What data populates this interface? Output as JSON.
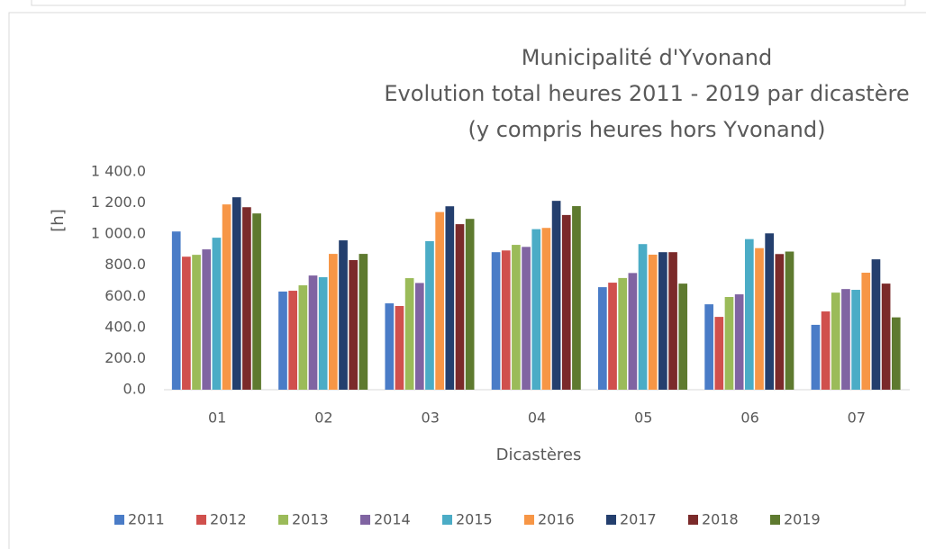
{
  "chart_data": {
    "type": "bar",
    "title": "Municipalité d'Yvonand",
    "subtitle": "Evolution total heures 2011 - 2019 par dicastère",
    "subtitle2": "(y compris heures hors Yvonand)",
    "x_label": "Dicastères",
    "y_label": "[h]",
    "categories": [
      "01",
      "02",
      "03",
      "04",
      "05",
      "06",
      "07"
    ],
    "series": [
      {
        "name": "2011",
        "color": "#4a7cc7",
        "values": [
          1017,
          631,
          555,
          884,
          659,
          549,
          417
        ]
      },
      {
        "name": "2012",
        "color": "#d0504d",
        "values": [
          855,
          636,
          538,
          895,
          688,
          468,
          503
        ]
      },
      {
        "name": "2013",
        "color": "#9bbb59",
        "values": [
          867,
          671,
          717,
          931,
          718,
          596,
          624
        ]
      },
      {
        "name": "2014",
        "color": "#8064a2",
        "values": [
          902,
          734,
          686,
          918,
          750,
          613,
          647
        ]
      },
      {
        "name": "2015",
        "color": "#4bacc6",
        "values": [
          977,
          723,
          955,
          1032,
          936,
          968,
          642
        ]
      },
      {
        "name": "2016",
        "color": "#f79646",
        "values": [
          1191,
          873,
          1142,
          1040,
          868,
          910,
          752
        ]
      },
      {
        "name": "2017",
        "color": "#243f6e",
        "values": [
          1237,
          960,
          1179,
          1214,
          884,
          1005,
          838
        ]
      },
      {
        "name": "2018",
        "color": "#7b2a2a",
        "values": [
          1173,
          833,
          1064,
          1123,
          884,
          872,
          682
        ]
      },
      {
        "name": "2019",
        "color": "#5e7a2f",
        "values": [
          1133,
          873,
          1098,
          1180,
          682,
          888,
          465
        ]
      }
    ],
    "ylim": [
      0,
      1400
    ],
    "yticks": [
      {
        "value": 0,
        "label": "0.0"
      },
      {
        "value": 200,
        "label": "200.0"
      },
      {
        "value": 400,
        "label": "400.0"
      },
      {
        "value": 600,
        "label": "600.0"
      },
      {
        "value": 800,
        "label": "800.0"
      },
      {
        "value": 1000,
        "label": "1 000.0"
      },
      {
        "value": 1200,
        "label": "1 200.0"
      },
      {
        "value": 1400,
        "label": "1 400.0"
      }
    ],
    "grid": false,
    "legend": "bottom"
  }
}
